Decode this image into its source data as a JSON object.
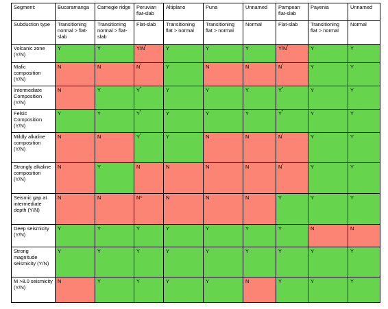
{
  "table": {
    "headers": [
      "Segment:",
      "Bucaramanga",
      "Carnegie ridge",
      "Peruvian flat-slab",
      "Altiplano",
      "Puna",
      "Unnamed",
      "Pampean flat-slab",
      "Payenia",
      "Unnamed"
    ],
    "subduction_row": [
      "Subduction type",
      "Transitioning normal > flat-slab",
      "Transitioning normal > flat-slab",
      "Flat-slab",
      "Transitioning flat > normal",
      "Transitioning flat > normal",
      "Normal",
      "Flat-slab",
      "Transitioning flat > normal",
      "Normal"
    ],
    "rows": [
      {
        "label": "Volcanic zone (Y/N)",
        "cells": [
          {
            "v": "Y",
            "c": "y"
          },
          {
            "v": "Y",
            "c": "y"
          },
          {
            "v": "Y/N",
            "s": "*",
            "c": "n"
          },
          {
            "v": "Y",
            "c": "y"
          },
          {
            "v": "Y",
            "c": "y"
          },
          {
            "v": "Y",
            "c": "y"
          },
          {
            "v": "Y/N",
            "s": "*",
            "c": "n"
          },
          {
            "v": "Y",
            "c": "y"
          },
          {
            "v": "Y",
            "c": "y"
          }
        ]
      },
      {
        "label": "Mafic composition (Y/N)",
        "cells": [
          {
            "v": "N",
            "c": "n"
          },
          {
            "v": "N",
            "c": "n"
          },
          {
            "v": "N",
            "s": "*",
            "c": "n"
          },
          {
            "v": "Y",
            "c": "y"
          },
          {
            "v": "N",
            "c": "n"
          },
          {
            "v": "N",
            "c": "n"
          },
          {
            "v": "N",
            "s": "*",
            "c": "n"
          },
          {
            "v": "Y",
            "c": "y"
          },
          {
            "v": "Y",
            "c": "y"
          }
        ]
      },
      {
        "label": "Intermediate Composition (Y/N)",
        "cells": [
          {
            "v": "N",
            "c": "n"
          },
          {
            "v": "Y",
            "c": "y"
          },
          {
            "v": "Y",
            "s": "*",
            "c": "y"
          },
          {
            "v": "Y",
            "c": "y"
          },
          {
            "v": "Y",
            "c": "y"
          },
          {
            "v": "Y",
            "c": "y"
          },
          {
            "v": "Y",
            "s": "*",
            "c": "y"
          },
          {
            "v": "Y",
            "c": "y"
          },
          {
            "v": "Y",
            "c": "y"
          }
        ]
      },
      {
        "label": "Felsic Composition (Y/N)",
        "cells": [
          {
            "v": "Y",
            "c": "y"
          },
          {
            "v": "Y",
            "c": "y"
          },
          {
            "v": "Y",
            "s": "*",
            "c": "y"
          },
          {
            "v": "Y",
            "c": "y"
          },
          {
            "v": "Y",
            "c": "y"
          },
          {
            "v": "Y",
            "c": "y"
          },
          {
            "v": "Y",
            "s": "*",
            "c": "y"
          },
          {
            "v": "Y",
            "c": "y"
          },
          {
            "v": "Y",
            "c": "y"
          }
        ]
      },
      {
        "label": "Mildly alkaline composition (Y/N)",
        "cells": [
          {
            "v": "N",
            "c": "n"
          },
          {
            "v": "N",
            "c": "n"
          },
          {
            "v": "Y",
            "s": "*",
            "c": "y"
          },
          {
            "v": "Y",
            "c": "y"
          },
          {
            "v": "N",
            "c": "n"
          },
          {
            "v": "N",
            "c": "n"
          },
          {
            "v": "N",
            "s": "*",
            "c": "n"
          },
          {
            "v": "Y",
            "c": "y"
          },
          {
            "v": "Y",
            "c": "y"
          }
        ]
      },
      {
        "label": "Strongly alkaline composition (Y/N)",
        "cells": [
          {
            "v": "N",
            "c": "n"
          },
          {
            "v": "Y",
            "c": "y"
          },
          {
            "v": "N",
            "c": "n"
          },
          {
            "v": "N",
            "c": "n"
          },
          {
            "v": "N",
            "c": "n"
          },
          {
            "v": "N",
            "c": "n"
          },
          {
            "v": "N",
            "s": "*",
            "c": "n"
          },
          {
            "v": "Y",
            "c": "y"
          },
          {
            "v": "Y",
            "c": "y"
          }
        ]
      },
      {
        "label": "Seismic gap at intermediate depth (Y/N)",
        "cells": [
          {
            "v": "N",
            "c": "n"
          },
          {
            "v": "N",
            "c": "n"
          },
          {
            "v": "N*",
            "c": "n"
          },
          {
            "v": "N",
            "c": "n"
          },
          {
            "v": "N",
            "c": "n"
          },
          {
            "v": "N",
            "c": "n"
          },
          {
            "v": "Y",
            "c": "y"
          },
          {
            "v": "Y",
            "c": "y"
          },
          {
            "v": "Y",
            "c": "y"
          }
        ]
      },
      {
        "label": "Deep seismicity (Y/N)",
        "cells": [
          {
            "v": "Y",
            "c": "y"
          },
          {
            "v": "Y",
            "c": "y"
          },
          {
            "v": "Y",
            "c": "y"
          },
          {
            "v": "Y",
            "c": "y"
          },
          {
            "v": "Y",
            "c": "y"
          },
          {
            "v": "Y",
            "c": "y"
          },
          {
            "v": "Y",
            "c": "y"
          },
          {
            "v": "N",
            "c": "n"
          },
          {
            "v": "N",
            "c": "n"
          }
        ]
      },
      {
        "label": "Strong magnitude seismicity (Y/N)",
        "cells": [
          {
            "v": "Y",
            "c": "y"
          },
          {
            "v": "Y",
            "c": "y"
          },
          {
            "v": "Y",
            "c": "y"
          },
          {
            "v": "Y",
            "c": "y"
          },
          {
            "v": "Y",
            "c": "y"
          },
          {
            "v": "Y",
            "c": "y"
          },
          {
            "v": "Y",
            "c": "y"
          },
          {
            "v": "Y",
            "c": "y"
          },
          {
            "v": "Y",
            "c": "y"
          }
        ]
      },
      {
        "label": "M >8.0 seismicity (Y/N)",
        "cells": [
          {
            "v": "N",
            "c": "n"
          },
          {
            "v": "Y",
            "c": "y"
          },
          {
            "v": "Y",
            "c": "y"
          },
          {
            "v": "Y",
            "c": "y"
          },
          {
            "v": "Y",
            "c": "y"
          },
          {
            "v": "N",
            "c": "n"
          },
          {
            "v": "Y",
            "c": "y"
          },
          {
            "v": "Y",
            "c": "y"
          },
          {
            "v": "Y",
            "c": "y"
          }
        ]
      }
    ],
    "colors": {
      "yes": "#66d44d",
      "no": "#fb8474"
    }
  }
}
